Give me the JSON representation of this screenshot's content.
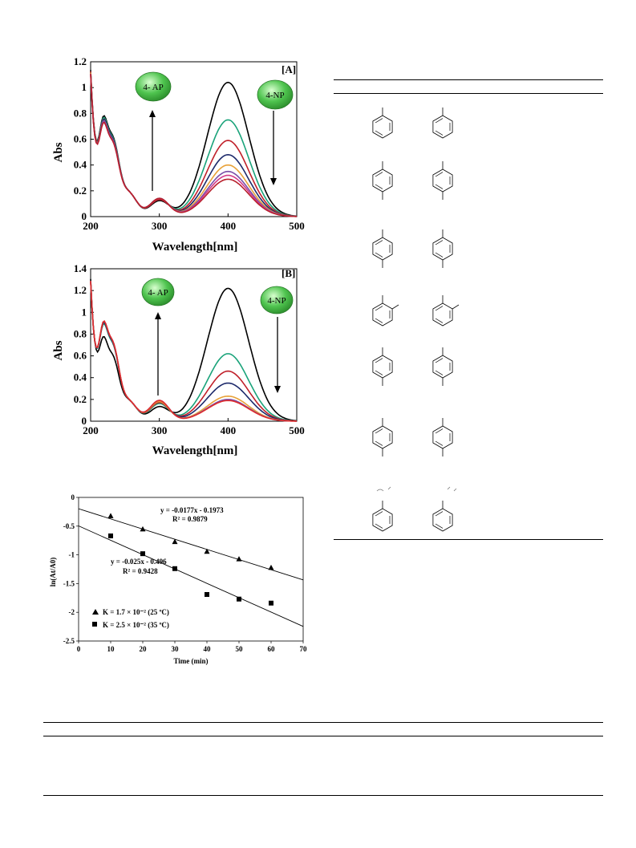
{
  "panel_a": {
    "tag": "[A]",
    "xlabel": "Wavelength[nm]",
    "ylabel": "Abs",
    "x_ticks": [
      "200",
      "300",
      "400",
      "500"
    ],
    "y_ticks": [
      "0",
      "0.2",
      "0.4",
      "0.6",
      "0.8",
      "1",
      "1.2"
    ],
    "badge_left": "4- AP",
    "badge_right": "4-NP"
  },
  "panel_b": {
    "tag": "[B]",
    "xlabel": "Wavelength[nm]",
    "ylabel": "Abs",
    "x_ticks": [
      "200",
      "300",
      "400",
      "500"
    ],
    "y_ticks": [
      "0",
      "0.2",
      "0.4",
      "0.6",
      "0.8",
      "1",
      "1.2",
      "1.4"
    ],
    "badge_left": "4- AP",
    "badge_right": "4-NP"
  },
  "kinetics": {
    "xlabel": "Time (min)",
    "ylabel": "ln(At/A0)",
    "x_ticks": [
      "0",
      "10",
      "20",
      "30",
      "40",
      "50",
      "60",
      "70"
    ],
    "y_ticks": [
      "0",
      "-0.5",
      "-1",
      "-1.5",
      "-2",
      "-2.5"
    ],
    "eq1": "y = -0.0177x - 0.1973",
    "r1": "R² = 0.9879",
    "eq2": "y = -0.025x - 0.496",
    "r2": "R² = 0.9428",
    "legend1": "K = 1.7 × 10⁻² (25 ºC)",
    "legend2": "K = 2.5 × 10⁻² (35 ºC)"
  },
  "chart_data": [
    {
      "type": "line",
      "panel": "[A]",
      "xlabel": "Wavelength[nm]",
      "ylabel": "Abs",
      "xlim": [
        200,
        500
      ],
      "ylim": [
        0,
        1.2
      ],
      "annotations": [
        "4- AP",
        "4-NP"
      ],
      "peak_wavelength": 400,
      "series": [
        {
          "color": "#000000",
          "peak_400": 1.04,
          "val_200": 1.18,
          "shoulder_230": 0.54,
          "val_300": 0.12
        },
        {
          "color": "#1aa37a",
          "peak_400": 0.75,
          "val_200": 1.17,
          "shoulder_230": 0.53,
          "val_300": 0.13
        },
        {
          "color": "#c0202a",
          "peak_400": 0.59,
          "val_200": 1.17,
          "shoulder_230": 0.52,
          "val_300": 0.13
        },
        {
          "color": "#1d2a6b",
          "peak_400": 0.48,
          "val_200": 1.16,
          "shoulder_230": 0.52,
          "val_300": 0.14
        },
        {
          "color": "#e8a23a",
          "peak_400": 0.4,
          "val_200": 1.16,
          "shoulder_230": 0.51,
          "val_300": 0.14
        },
        {
          "color": "#7b4fa8",
          "peak_400": 0.35,
          "val_200": 1.15,
          "shoulder_230": 0.51,
          "val_300": 0.14
        },
        {
          "color": "#d23a8a",
          "peak_400": 0.32,
          "val_200": 1.15,
          "shoulder_230": 0.5,
          "val_300": 0.14
        },
        {
          "color": "#b8202c",
          "peak_400": 0.29,
          "val_200": 1.15,
          "shoulder_230": 0.5,
          "val_300": 0.14
        }
      ]
    },
    {
      "type": "line",
      "panel": "[B]",
      "xlabel": "Wavelength[nm]",
      "ylabel": "Abs",
      "xlim": [
        200,
        500
      ],
      "ylim": [
        0,
        1.4
      ],
      "annotations": [
        "4- AP",
        "4-NP"
      ],
      "peak_wavelength": 400,
      "series": [
        {
          "color": "#000000",
          "peak_400": 1.22,
          "val_200": 1.35,
          "shoulder_230": 0.52,
          "val_300": 0.13
        },
        {
          "color": "#1aa37a",
          "peak_400": 0.62,
          "val_200": 1.33,
          "shoulder_230": 0.62,
          "val_300": 0.16
        },
        {
          "color": "#c0202a",
          "peak_400": 0.46,
          "val_200": 1.33,
          "shoulder_230": 0.63,
          "val_300": 0.17
        },
        {
          "color": "#1d2a6b",
          "peak_400": 0.35,
          "val_200": 1.33,
          "shoulder_230": 0.63,
          "val_300": 0.18
        },
        {
          "color": "#e8a23a",
          "peak_400": 0.23,
          "val_200": 1.33,
          "shoulder_230": 0.64,
          "val_300": 0.18
        },
        {
          "color": "#7b4fa8",
          "peak_400": 0.2,
          "val_200": 1.33,
          "shoulder_230": 0.64,
          "val_300": 0.19
        },
        {
          "color": "#e02a2a",
          "peak_400": 0.19,
          "val_200": 1.33,
          "shoulder_230": 0.64,
          "val_300": 0.19
        }
      ]
    },
    {
      "type": "scatter",
      "xlabel": "Time (min)",
      "ylabel": "ln(At/A0)",
      "xlim": [
        0,
        70
      ],
      "ylim": [
        -2.5,
        0
      ],
      "series": [
        {
          "name": "K = 1.7 × 10⁻² (25 ºC)",
          "marker": "triangle",
          "x": [
            10,
            20,
            30,
            40,
            50,
            60
          ],
          "y": [
            -0.32,
            -0.55,
            -0.77,
            -0.94,
            -1.07,
            -1.22
          ],
          "fit": {
            "slope": -0.0177,
            "intercept": -0.1973
          }
        },
        {
          "name": "K = 2.5 × 10⁻² (35 ºC)",
          "marker": "square",
          "x": [
            10,
            20,
            30,
            40,
            50,
            60
          ],
          "y": [
            -0.67,
            -0.98,
            -1.24,
            -1.69,
            -1.77,
            -1.84
          ],
          "fit": {
            "slope": -0.025,
            "intercept": -0.496
          }
        }
      ]
    }
  ]
}
